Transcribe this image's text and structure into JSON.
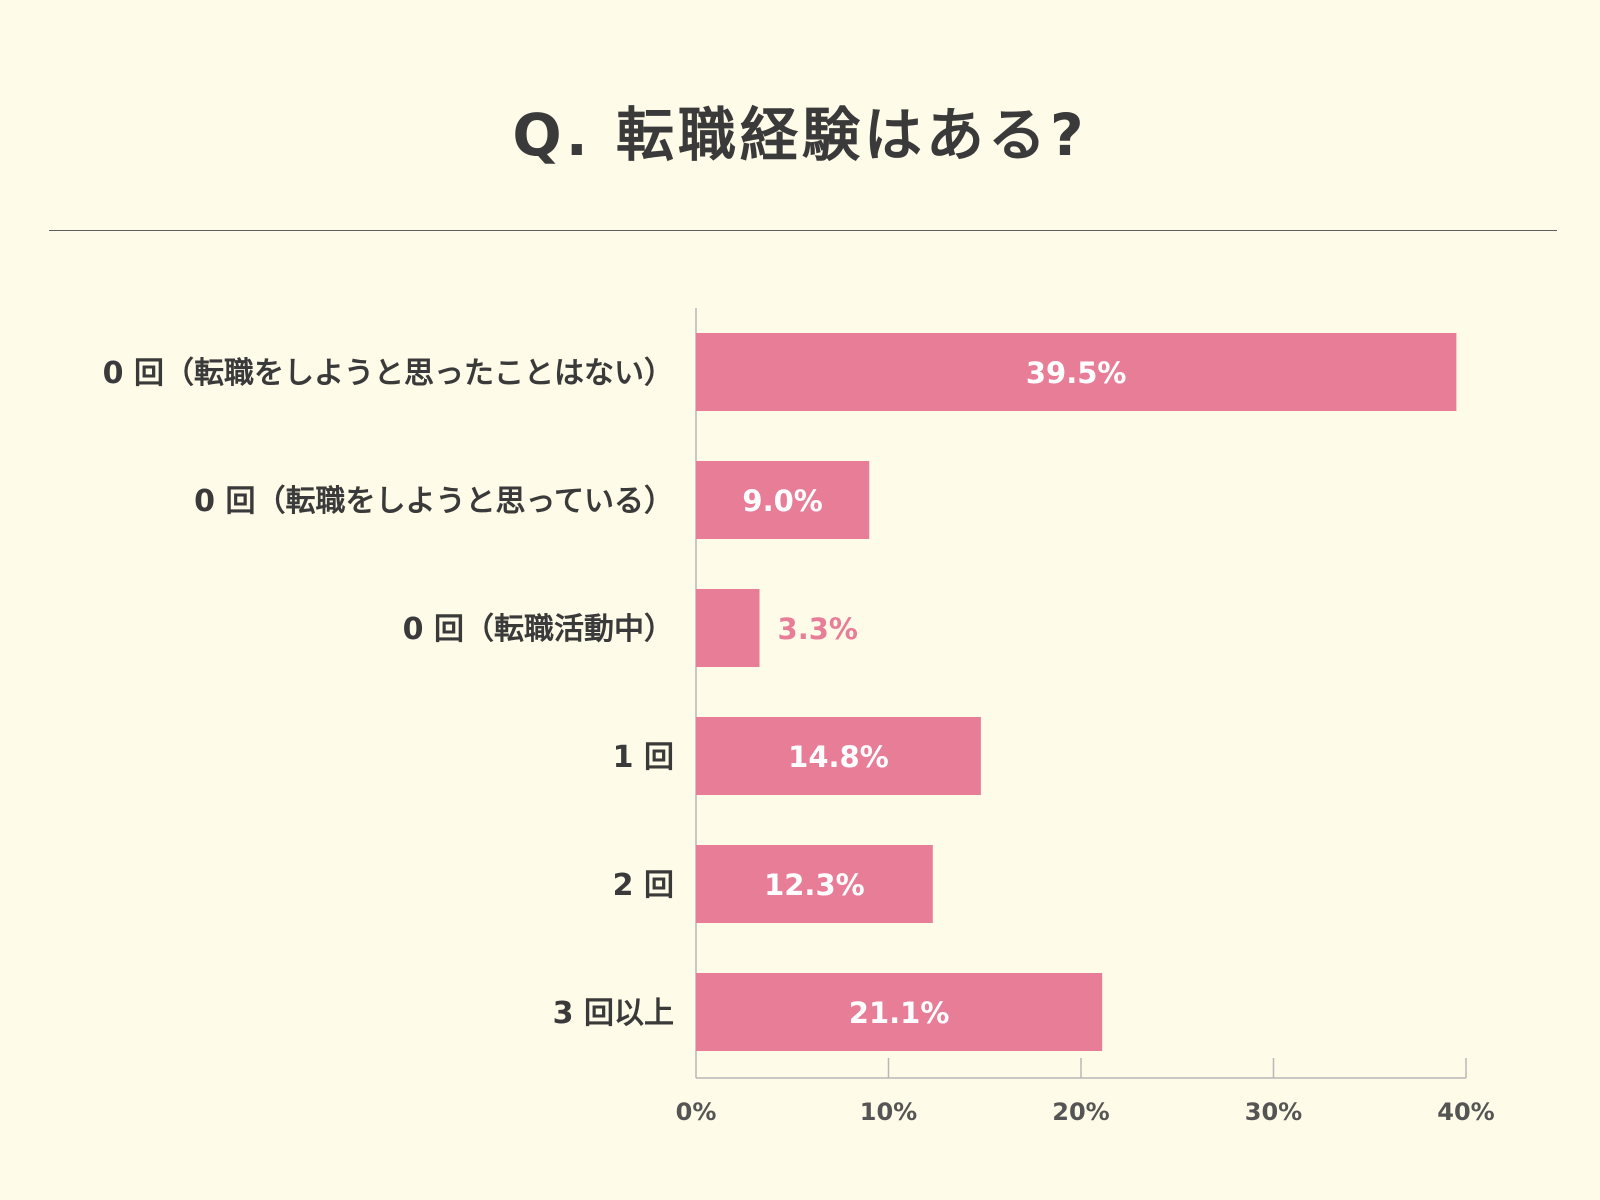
{
  "chart_data": {
    "type": "bar",
    "orientation": "horizontal",
    "title": "Q. 転職経験はある?",
    "categories": [
      "0 回（転職をしようと思ったことはない）",
      "0 回（転職をしようと思っている）",
      "0 回（転職活動中）",
      "1 回",
      "2 回",
      "3 回以上"
    ],
    "values": [
      39.5,
      9.0,
      3.3,
      14.8,
      12.3,
      21.1
    ],
    "value_labels": [
      "39.5%",
      "9.0%",
      "3.3%",
      "14.8%",
      "12.3%",
      "21.1%"
    ],
    "xlim": [
      0,
      40
    ],
    "xticks": [
      0,
      10,
      20,
      30,
      40
    ],
    "xtick_labels": [
      "0%",
      "10%",
      "20%",
      "30%",
      "40%"
    ],
    "xlabel": "",
    "ylabel": "",
    "grid": false,
    "legend": "none",
    "colors": {
      "bar": "#e87d98",
      "label_inside": "#ffffff",
      "label_outside": "#e87d98",
      "axis": "#b8b8b8",
      "background": "#fefbe8",
      "text": "#3a3a3a"
    }
  }
}
